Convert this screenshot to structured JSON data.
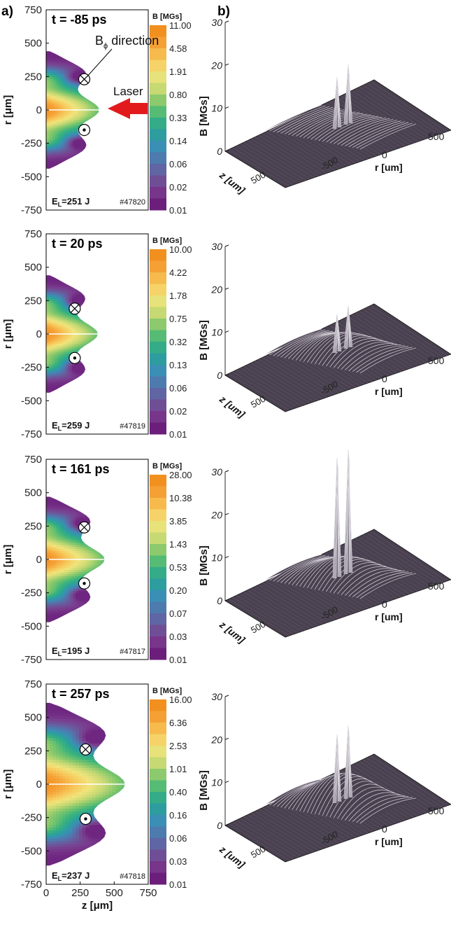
{
  "figure": {
    "panel_a_label": "a)",
    "panel_b_label": "b)",
    "annotation_bphi_main": "B",
    "annotation_bphi_sub": "ϕ",
    "annotation_bphi_rest": " direction",
    "annotation_laser": "Laser"
  },
  "colors": {
    "colormap": [
      "#6b1f7b",
      "#7a3c8e",
      "#6a5a9c",
      "#5276ad",
      "#3b8fb4",
      "#2aa19b",
      "#3ab37c",
      "#7ec66b",
      "#c6d973",
      "#f1e47c",
      "#f7c85a",
      "#f5a43a",
      "#f2901f"
    ],
    "laser_arrow": "#e31a1c",
    "surface_fill": "#4a4150",
    "surface_line": "#d8d4dc"
  },
  "chart_data": [
    {
      "type": "heatmap",
      "panel": "a",
      "title": "t = -85 ps",
      "ylabel": "r [μm]",
      "xlim": [
        0,
        750
      ],
      "ylim": [
        -750,
        750
      ],
      "yticks": [
        "750",
        "500",
        "250",
        "0",
        "-250",
        "-500",
        "-750"
      ],
      "colorbar_title": "B [MGs]",
      "colorbar_ticks": [
        "11.00",
        "4.58",
        "1.91",
        "0.80",
        "0.33",
        "0.14",
        "0.06",
        "0.02",
        "0.01"
      ],
      "energy_label": "E",
      "energy_sub": "L",
      "energy_value": "=251 J",
      "shot": "#47820",
      "extent_z": 390,
      "extent_r": 440,
      "symbol_into_r": 230,
      "symbol_out_r": -150,
      "symbol_z": 280,
      "show_bphi_annotation": true,
      "show_laser": true,
      "show_xaxis": false
    },
    {
      "type": "heatmap",
      "panel": "a",
      "title": "t = 20 ps",
      "ylabel": "r [μm]",
      "xlim": [
        0,
        750
      ],
      "ylim": [
        -750,
        750
      ],
      "yticks": [
        "750",
        "500",
        "250",
        "0",
        "-250",
        "-500",
        "-750"
      ],
      "colorbar_title": "B [MGs]",
      "colorbar_ticks": [
        "10.00",
        "4.22",
        "1.78",
        "0.75",
        "0.32",
        "0.13",
        "0.06",
        "0.02",
        "0.01"
      ],
      "energy_label": "E",
      "energy_sub": "L",
      "energy_value": "=259 J",
      "shot": "#47819",
      "extent_z": 380,
      "extent_r": 440,
      "symbol_into_r": 190,
      "symbol_out_r": -180,
      "symbol_z": 210,
      "show_bphi_annotation": false,
      "show_laser": false,
      "show_xaxis": false
    },
    {
      "type": "heatmap",
      "panel": "a",
      "title": "t = 161 ps",
      "ylabel": "r [μm]",
      "xlim": [
        0,
        750
      ],
      "ylim": [
        -750,
        750
      ],
      "yticks": [
        "750",
        "500",
        "250",
        "0",
        "-250",
        "-500",
        "-750"
      ],
      "colorbar_title": "B [MGs]",
      "colorbar_ticks": [
        "28.00",
        "10.38",
        "3.85",
        "1.43",
        "0.53",
        "0.20",
        "0.07",
        "0.03",
        "0.01"
      ],
      "energy_label": "E",
      "energy_sub": "L",
      "energy_value": "=195 J",
      "shot": "#47817",
      "extent_z": 430,
      "extent_r": 470,
      "symbol_into_r": 240,
      "symbol_out_r": -180,
      "symbol_z": 280,
      "show_bphi_annotation": false,
      "show_laser": false,
      "show_xaxis": false
    },
    {
      "type": "heatmap",
      "panel": "a",
      "title": "t = 257 ps",
      "ylabel": "r [μm]",
      "xlabel": "z [μm]",
      "xlim": [
        0,
        750
      ],
      "ylim": [
        -750,
        750
      ],
      "yticks": [
        "750",
        "500",
        "250",
        "0",
        "-250",
        "-500",
        "-750"
      ],
      "xticks": [
        "0",
        "250",
        "500",
        "750"
      ],
      "colorbar_title": "B [MGs]",
      "colorbar_ticks": [
        "16.00",
        "6.36",
        "2.53",
        "1.01",
        "0.40",
        "0.16",
        "0.06",
        "0.03",
        "0.01"
      ],
      "energy_label": "E",
      "energy_sub": "L",
      "energy_value": "=237 J",
      "shot": "#47818",
      "extent_z": 580,
      "extent_r": 610,
      "symbol_into_r": 260,
      "symbol_out_r": -260,
      "symbol_z": 290,
      "show_bphi_annotation": false,
      "show_laser": false,
      "show_xaxis": true
    },
    {
      "type": "surface",
      "panel": "b",
      "zlabel": "B [MGs]",
      "zticks": [
        "0",
        "10",
        "20",
        "30"
      ],
      "r_axis_label": "r [um]",
      "r_ticks": [
        "0",
        "500"
      ],
      "z_axis_label": "z [um]",
      "z_ticks": [
        "500",
        "-500"
      ],
      "peak_heights": [
        12,
        14
      ],
      "broad_height": 2
    },
    {
      "type": "surface",
      "panel": "b",
      "zlabel": "B [MGs]",
      "zticks": [
        "0",
        "10",
        "20",
        "30"
      ],
      "r_axis_label": "r [um]",
      "r_ticks": [
        "0",
        "500"
      ],
      "z_axis_label": "z [um]",
      "z_ticks": [
        "500",
        "-500"
      ],
      "peak_heights": [
        9,
        10
      ],
      "broad_height": 7
    },
    {
      "type": "surface",
      "panel": "b",
      "zlabel": "B [MGs]",
      "zticks": [
        "0",
        "10",
        "20",
        "30"
      ],
      "r_axis_label": "r [um]",
      "r_ticks": [
        "0",
        "500"
      ],
      "z_axis_label": "z [um]",
      "z_ticks": [
        "500",
        "-500"
      ],
      "peak_heights": [
        28,
        29
      ],
      "broad_height": 8
    },
    {
      "type": "surface",
      "panel": "b",
      "zlabel": "B [MGs]",
      "zticks": [
        "0",
        "10",
        "20",
        "30"
      ],
      "r_axis_label": "r [um]",
      "r_ticks": [
        "0",
        "500"
      ],
      "z_axis_label": "z [um]",
      "z_ticks": [
        "500",
        "-500"
      ],
      "peak_heights": [
        16,
        17
      ],
      "broad_height": 12
    }
  ]
}
